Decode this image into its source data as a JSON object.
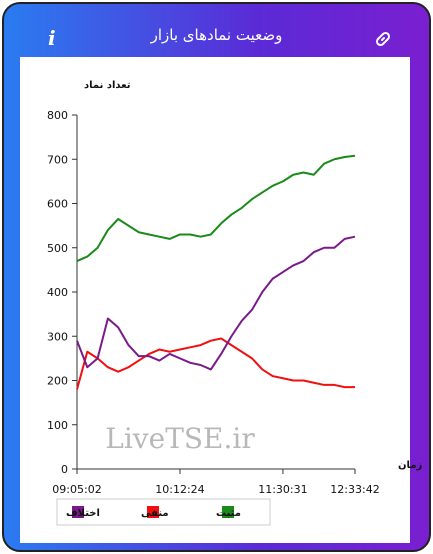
{
  "header": {
    "title": "وضعیت نمادهای بازار",
    "info": "i"
  },
  "watermark": "LiveTSE.ir",
  "chart_data": {
    "type": "line",
    "y_label": "تعداد نماد",
    "x_label": "زمان",
    "categories": [
      "09:05:02",
      null,
      null,
      null,
      null,
      null,
      null,
      null,
      null,
      null,
      "10:12:24",
      null,
      null,
      null,
      null,
      null,
      null,
      null,
      null,
      null,
      "11:30:31",
      null,
      null,
      null,
      null,
      null,
      null,
      "12:33:42"
    ],
    "series": [
      {
        "name": "مثبت",
        "color": "#1a8a1a",
        "values": [
          470,
          480,
          500,
          540,
          565,
          550,
          535,
          530,
          525,
          520,
          530,
          530,
          525,
          530,
          555,
          575,
          590,
          610,
          625,
          640,
          650,
          665,
          670,
          665,
          690,
          700,
          705,
          708
        ]
      },
      {
        "name": "منفی",
        "color": "#f01010",
        "values": [
          180,
          265,
          250,
          230,
          220,
          230,
          245,
          260,
          270,
          265,
          270,
          275,
          280,
          290,
          295,
          280,
          265,
          250,
          225,
          210,
          205,
          200,
          200,
          195,
          190,
          190,
          185,
          185
        ]
      },
      {
        "name": "اختلاف",
        "color": "#7a1a8a",
        "values": [
          290,
          230,
          250,
          340,
          320,
          280,
          255,
          255,
          245,
          260,
          250,
          240,
          235,
          225,
          260,
          300,
          335,
          360,
          400,
          430,
          445,
          460,
          470,
          490,
          500,
          500,
          520,
          525
        ]
      }
    ],
    "ylim": [
      0,
      800
    ],
    "yticks": [
      0,
      100,
      200,
      300,
      400,
      500,
      600,
      700,
      800
    ]
  }
}
